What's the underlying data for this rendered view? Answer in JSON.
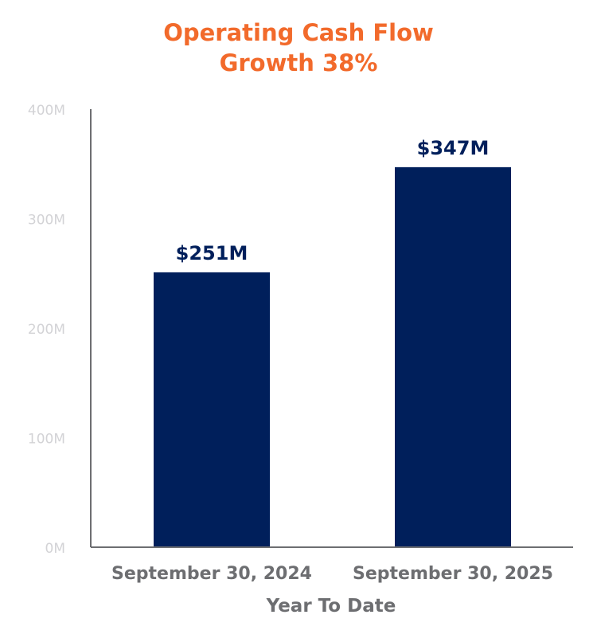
{
  "chart_data": {
    "type": "bar",
    "title": "Operating Cash Flow",
    "subtitle": "Growth 38%",
    "categories": [
      "September 30, 2024",
      "September 30, 2025"
    ],
    "values": [
      251,
      347
    ],
    "data_labels": [
      "$251M",
      "$347M"
    ],
    "xlabel": "Year To Date",
    "ylabel": "",
    "ylim": [
      0,
      400
    ],
    "yticks": [
      0,
      100,
      200,
      300,
      400
    ],
    "ytick_labels": [
      "0M",
      "100M",
      "200M",
      "300M",
      "400M"
    ],
    "grid": false,
    "legend": "none",
    "colors": {
      "bar": "#001f5b",
      "title": "#f26a2b",
      "axis_label": "#6d6e71",
      "tick_label": "#d3d3d6",
      "axis_line": "#6d6e71"
    }
  }
}
